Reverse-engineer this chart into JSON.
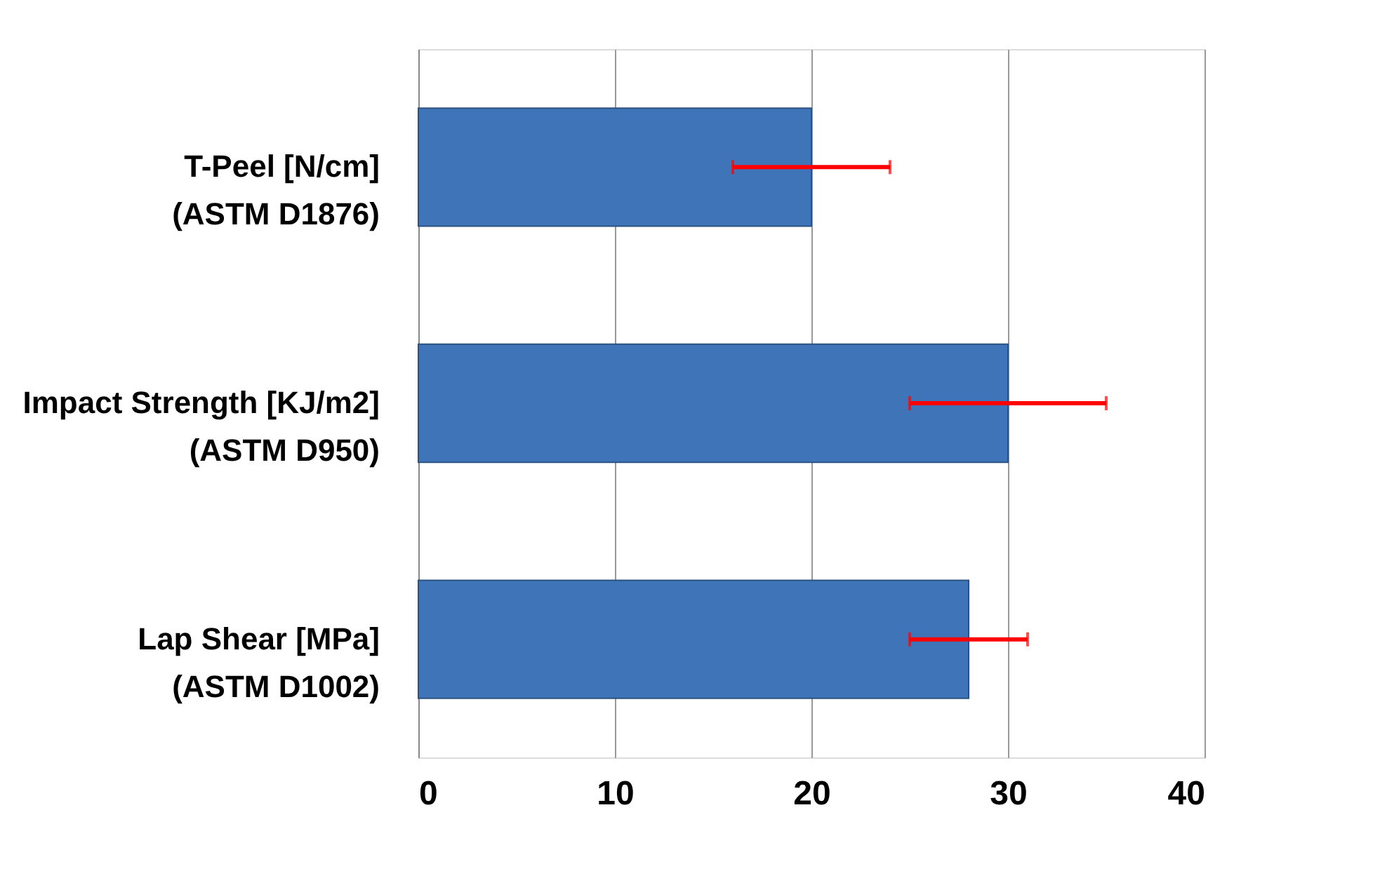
{
  "chart_data": {
    "type": "bar",
    "orientation": "horizontal",
    "categories": [
      "T-Peel [N/cm]\n(ASTM D1876)",
      "Impact Strength [KJ/m2]\n(ASTM D950)",
      "Lap Shear [MPa]\n(ASTM D1002)"
    ],
    "series": [
      {
        "color": "#3f74b9",
        "values": [
          20,
          30,
          28
        ],
        "errors": [
          4,
          5,
          3
        ]
      }
    ],
    "xlim": [
      0,
      40
    ],
    "xticks": [
      0,
      10,
      20,
      30,
      40
    ],
    "grid": "x"
  }
}
